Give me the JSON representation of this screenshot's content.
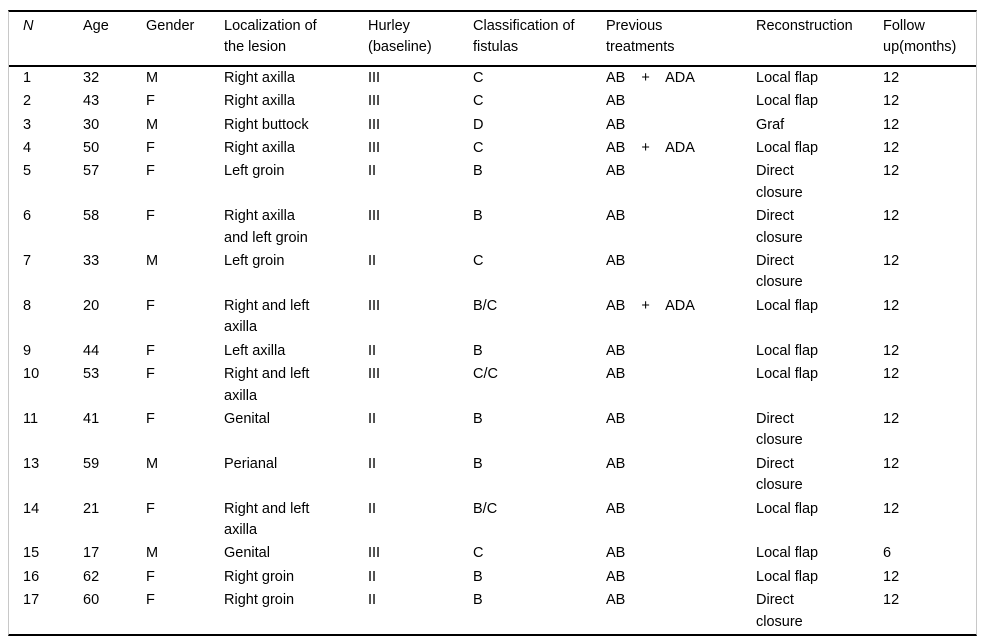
{
  "colors": {
    "text": "#000000",
    "rule": "#000000",
    "frame": "#c8c8c8",
    "background": "#ffffff"
  },
  "table": {
    "columns": [
      {
        "key": "n",
        "label": "N"
      },
      {
        "key": "age",
        "label": "Age"
      },
      {
        "key": "gender",
        "label": "Gender"
      },
      {
        "key": "localization",
        "label": "Localization of\nthe lesion"
      },
      {
        "key": "hurley",
        "label": "Hurley\n(baseline)"
      },
      {
        "key": "classification",
        "label": "Classification of\nfistulas"
      },
      {
        "key": "previous",
        "label": "Previous\ntreatments"
      },
      {
        "key": "reconstruction",
        "label": "Reconstruction"
      },
      {
        "key": "followup",
        "label": "Follow\nup(months)"
      }
    ],
    "rows": [
      [
        "1",
        "32",
        "M",
        "Right axilla",
        "III",
        "C",
        "AB + ADA",
        "Local flap",
        "12"
      ],
      [
        "2",
        "43",
        "F",
        "Right axilla",
        "III",
        "C",
        "AB",
        "Local flap",
        "12"
      ],
      [
        "3",
        "30",
        "M",
        "Right buttock",
        "III",
        "D",
        "AB",
        "Graf",
        "12"
      ],
      [
        "4",
        "50",
        "F",
        "Right axilla",
        "III",
        "C",
        "AB + ADA",
        "Local flap",
        "12"
      ],
      [
        "5",
        "57",
        "F",
        "Left groin",
        "II",
        "B",
        "AB",
        "Direct\nclosure",
        "12"
      ],
      [
        "6",
        "58",
        "F",
        "Right axilla\nand left groin",
        "III",
        "B",
        "AB",
        "Direct\nclosure",
        "12"
      ],
      [
        "7",
        "33",
        "M",
        "Left groin",
        "II",
        "C",
        "AB",
        "Direct\nclosure",
        "12"
      ],
      [
        "8",
        "20",
        "F",
        "Right and left\naxilla",
        "III",
        "B/C",
        "AB + ADA",
        "Local flap",
        "12"
      ],
      [
        "9",
        "44",
        "F",
        "Left axilla",
        "II",
        "B",
        "AB",
        "Local flap",
        "12"
      ],
      [
        "10",
        "53",
        "F",
        "Right and left\naxilla",
        "III",
        "C/C",
        "AB",
        "Local flap",
        "12"
      ],
      [
        "11",
        "41",
        "F",
        "Genital",
        "II",
        "B",
        "AB",
        "Direct\nclosure",
        "12"
      ],
      [
        "13",
        "59",
        "M",
        "Perianal",
        "II",
        "B",
        "AB",
        "Direct\nclosure",
        "12"
      ],
      [
        "14",
        "21",
        "F",
        "Right and left\naxilla",
        "II",
        "B/C",
        "AB",
        "Local flap",
        "12"
      ],
      [
        "15",
        "17",
        "M",
        "Genital",
        "III",
        "C",
        "AB",
        "Local flap",
        "6"
      ],
      [
        "16",
        "62",
        "F",
        "Right groin",
        "II",
        "B",
        "AB",
        "Local flap",
        "12"
      ],
      [
        "17",
        "60",
        "F",
        "Right groin",
        "II",
        "B",
        "AB",
        "Direct\nclosure",
        "12"
      ]
    ]
  }
}
